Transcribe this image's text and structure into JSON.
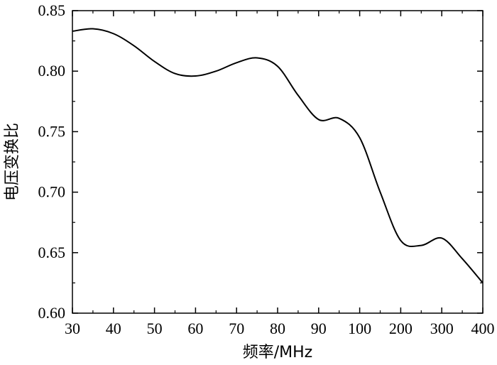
{
  "chart_data": {
    "type": "line",
    "title": "",
    "xlabel": "频率/MHz",
    "ylabel": "电压变换比",
    "x_ticks": [
      "30",
      "40",
      "50",
      "60",
      "70",
      "80",
      "90",
      "100",
      "200",
      "300",
      "400"
    ],
    "ylim": [
      0.6,
      0.85
    ],
    "y_ticks": [
      0.6,
      0.65,
      0.7,
      0.75,
      0.8,
      0.85
    ],
    "y_tick_labels": [
      "0.60",
      "0.65",
      "0.70",
      "0.75",
      "0.80",
      "0.85"
    ],
    "grid": false,
    "legend": "none",
    "series": [
      {
        "color": "#000000",
        "x": [
          "30",
          "35",
          "40",
          "45",
          "50",
          "55",
          "60",
          "65",
          "70",
          "75",
          "80",
          "85",
          "90",
          "95",
          "100",
          "150",
          "200",
          "250",
          "300",
          "350",
          "400"
        ],
        "values": [
          0.833,
          0.835,
          0.831,
          0.821,
          0.808,
          0.798,
          0.796,
          0.8,
          0.807,
          0.811,
          0.804,
          0.78,
          0.76,
          0.761,
          0.745,
          0.7,
          0.66,
          0.656,
          0.662,
          0.645,
          0.625
        ]
      }
    ]
  }
}
